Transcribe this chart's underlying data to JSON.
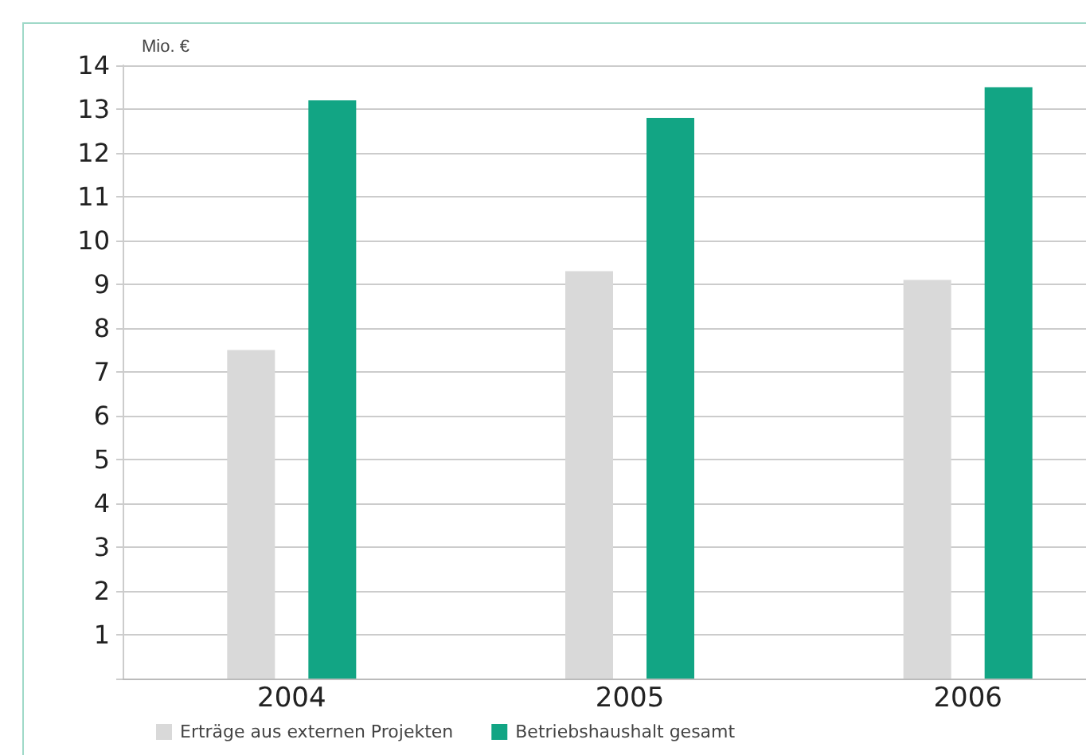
{
  "chart_data": {
    "type": "bar",
    "ylabel": "Mio. €",
    "categories": [
      "2004",
      "2005",
      "2006"
    ],
    "series": [
      {
        "name": "Erträge aus externen Projekten",
        "color": "#d9d9d9",
        "values": [
          7.5,
          9.3,
          9.1
        ]
      },
      {
        "name": "Betriebshaushalt gesamt",
        "color": "#12a584",
        "values": [
          13.2,
          12.8,
          13.5
        ]
      }
    ],
    "ylim": [
      0,
      14
    ],
    "yticks": [
      {
        "value": 0,
        "label": null
      },
      1,
      2,
      3,
      4,
      5,
      6,
      7,
      8,
      9,
      10,
      11,
      12,
      13,
      14
    ],
    "grid": "y",
    "legend": "bottom left"
  }
}
